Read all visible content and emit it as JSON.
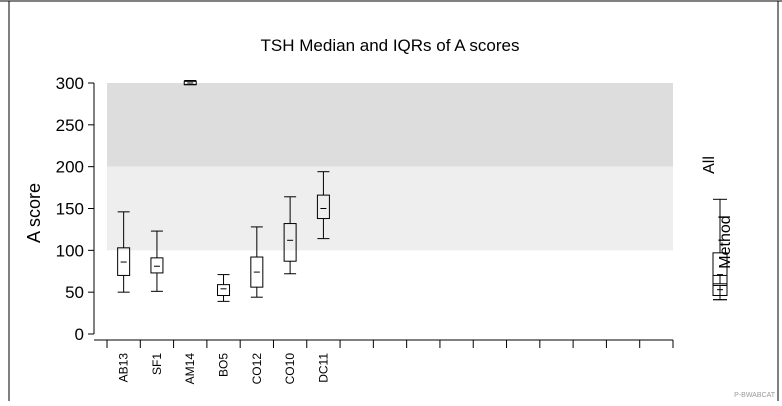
{
  "chart_data": {
    "type": "box",
    "title": "TSH Median and IQRs of A scores",
    "xlabel": "",
    "ylabel": "A score",
    "ylim": [
      0,
      300
    ],
    "yticks": [
      0,
      50,
      100,
      150,
      200,
      250,
      300
    ],
    "grid": false,
    "bands": [
      {
        "from": 200,
        "to": 300,
        "color": "#dddddd"
      },
      {
        "from": 100,
        "to": 200,
        "color": "#eeeeee"
      }
    ],
    "categories": [
      "AB13",
      "SF1",
      "AM14",
      "BO5",
      "CO12",
      "CO10",
      "DC11"
    ],
    "category_slots": 17,
    "boxes": [
      {
        "label": "AB13",
        "min": 50,
        "q1": 70,
        "median": 86,
        "q3": 103,
        "max": 146
      },
      {
        "label": "SF1",
        "min": 51,
        "q1": 73,
        "median": 81,
        "q3": 91,
        "max": 123
      },
      {
        "label": "AM14",
        "min": 298,
        "q1": 298,
        "median": 300,
        "q3": 302,
        "max": 303
      },
      {
        "label": "BO5",
        "min": 39,
        "q1": 46,
        "median": 54,
        "q3": 59,
        "max": 71
      },
      {
        "label": "CO12",
        "min": 44,
        "q1": 56,
        "median": 74,
        "q3": 92,
        "max": 128
      },
      {
        "label": "CO10",
        "min": 72,
        "q1": 87,
        "median": 112,
        "q3": 132,
        "max": 164
      },
      {
        "label": "DC11",
        "min": 114,
        "q1": 138,
        "median": 150,
        "q3": 166,
        "max": 194
      }
    ],
    "summary_boxes": [
      {
        "label": "All",
        "min": 41,
        "q1": 58,
        "median": 71,
        "q3": 97,
        "max": 161
      },
      {
        "label": "Method",
        "min": 41,
        "q1": 46,
        "median": 53,
        "q3": 60,
        "max": 70
      }
    ],
    "footer": "P-BWABCAT"
  }
}
